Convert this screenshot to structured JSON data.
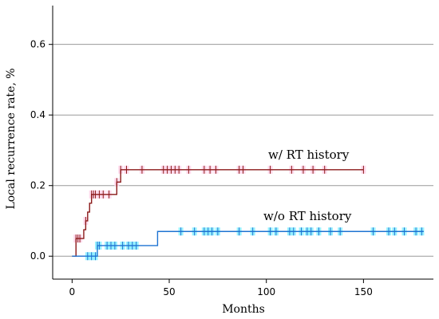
{
  "chart_data": {
    "type": "line",
    "title": "",
    "xlabel": "Months",
    "ylabel": "Local recurrence rate, %",
    "xlim": [
      -10,
      186
    ],
    "ylim": [
      -0.065,
      0.71
    ],
    "x_ticks": [
      {
        "value": 0,
        "label": "0"
      },
      {
        "value": 50,
        "label": "50"
      },
      {
        "value": 100,
        "label": "100"
      },
      {
        "value": 150,
        "label": "150"
      }
    ],
    "y_ticks": [
      {
        "value": 0.0,
        "label": "0.0"
      },
      {
        "value": 0.2,
        "label": "0.2"
      },
      {
        "value": 0.4,
        "label": "0.4"
      },
      {
        "value": 0.6,
        "label": "0.6"
      }
    ],
    "grid": "horizontal",
    "series": [
      {
        "name": "w/ RT history",
        "color": "#8b1a1a",
        "ci_color": "#ffd6ea",
        "step_x": [
          0,
          2,
          6,
          7,
          8,
          9,
          10,
          23,
          25,
          150
        ],
        "step_y": [
          0,
          0.05,
          0.075,
          0.1,
          0.125,
          0.15,
          0.175,
          0.21,
          0.245,
          0.245
        ],
        "censor_x": [
          2,
          3,
          4,
          7,
          10,
          11,
          12,
          14,
          16,
          19,
          23,
          25,
          28,
          36,
          47,
          49,
          51,
          53,
          55,
          60,
          68,
          71,
          74,
          86,
          88,
          102,
          113,
          119,
          124,
          130,
          150
        ]
      },
      {
        "name": "w/o RT history",
        "color": "#1e73d2",
        "ci_color": "#8ef0ff",
        "step_x": [
          0,
          8,
          13,
          44,
          181
        ],
        "step_y": [
          0,
          0,
          0.03,
          0.07,
          0.07
        ],
        "censor_x": [
          8,
          10,
          12,
          13,
          14,
          18,
          20,
          22,
          26,
          29,
          31,
          33,
          56,
          63,
          68,
          70,
          72,
          75,
          86,
          93,
          102,
          105,
          112,
          114,
          118,
          121,
          123,
          127,
          133,
          138,
          155,
          163,
          166,
          171,
          177,
          180
        ]
      }
    ]
  }
}
